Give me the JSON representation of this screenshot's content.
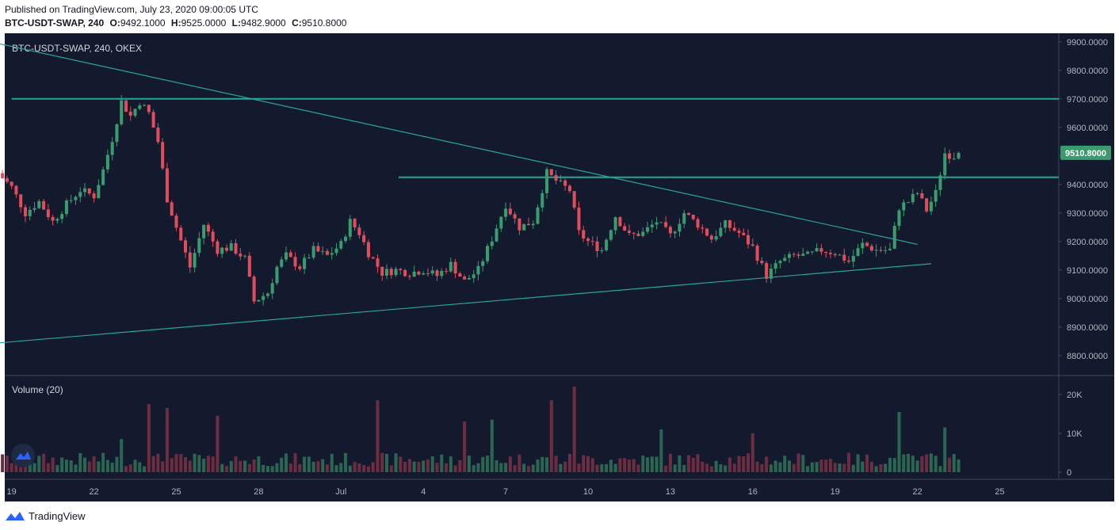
{
  "header": {
    "published": "Published on TradingView.com, July 23, 2020 09:00:05 UTC",
    "symbol_interval": "BTC-USDT-SWAP, 240",
    "open_label": "O:",
    "open": "9492.1000",
    "high_label": "H:",
    "high": "9525.0000",
    "low_label": "L:",
    "low": "9482.9000",
    "close_label": "C:",
    "close": "9510.8000"
  },
  "pane": {
    "symbol_label": "BTC-USDT-SWAP, 240, OKEX",
    "volume_label": "Volume (20)"
  },
  "footer": {
    "brand": "TradingView"
  },
  "colors": {
    "background": "#131a2e",
    "up": "#3a9b6e",
    "down": "#e04d5c",
    "vol_up": "#2b6652",
    "vol_down": "#6d2d41",
    "trendline": "#26a69a",
    "price_badge": "#3a9b6e",
    "axis_text": "#b2b5be"
  },
  "chart_data": {
    "type": "candlestick",
    "price_axis": {
      "ticks": [
        "9900.0000",
        "9800.0000",
        "9700.0000",
        "9600.0000",
        "9500.0000",
        "9400.0000",
        "9300.0000",
        "9200.0000",
        "9100.0000",
        "9000.0000",
        "8900.0000",
        "8800.0000"
      ],
      "range": [
        8730,
        9930
      ],
      "last_price": "9510.8000"
    },
    "volume_axis": {
      "ticks": [
        "20K",
        "10K",
        "0"
      ],
      "range": [
        0,
        22000
      ]
    },
    "time_axis": {
      "labels": [
        "19",
        "22",
        "25",
        "28",
        "Jul",
        "4",
        "7",
        "10",
        "13",
        "16",
        "19",
        "22",
        "25"
      ],
      "label_days": [
        19,
        22,
        25,
        28,
        31,
        34,
        37,
        40,
        43,
        46,
        49,
        52,
        55
      ],
      "range_days": [
        18.75,
        57.15
      ]
    },
    "horizontal_levels": [
      9700,
      9425
    ],
    "trendlines": [
      {
        "from": [
          "Jun 18 00:00",
          9905
        ],
        "to": [
          "Jul 22 00:00",
          9190
        ]
      },
      {
        "from": [
          "Jun 18 00:00",
          8840
        ],
        "to": [
          "Jul 22 12:00",
          9122
        ]
      }
    ],
    "ohlc_anchors": [
      [
        "Jun 18 12:00",
        9440
      ],
      [
        "Jun 19 00:00",
        9390
      ],
      [
        "Jun 19 12:00",
        9300
      ],
      [
        "Jun 20 00:00",
        9340
      ],
      [
        "Jun 20 12:00",
        9270
      ],
      [
        "Jun 21 00:00",
        9330
      ],
      [
        "Jun 21 12:00",
        9380
      ],
      [
        "Jun 22 00:00",
        9360
      ],
      [
        "Jun 22 08:00",
        9450
      ],
      [
        "Jun 22 16:00",
        9560
      ],
      [
        "Jun 23 00:00",
        9690
      ],
      [
        "Jun 23 08:00",
        9640
      ],
      [
        "Jun 23 16:00",
        9690
      ],
      [
        "Jun 24 00:00",
        9650
      ],
      [
        "Jun 24 08:00",
        9550
      ],
      [
        "Jun 24 16:00",
        9350
      ],
      [
        "Jun 25 00:00",
        9250
      ],
      [
        "Jun 25 12:00",
        9110
      ],
      [
        "Jun 26 00:00",
        9260
      ],
      [
        "Jun 26 12:00",
        9170
      ],
      [
        "Jun 27 00:00",
        9180
      ],
      [
        "Jun 27 12:00",
        9140
      ],
      [
        "Jun 27 20:00",
        8990
      ],
      [
        "Jun 28 08:00",
        9020
      ],
      [
        "Jun 28 16:00",
        9110
      ],
      [
        "Jun 29 00:00",
        9150
      ],
      [
        "Jun 29 12:00",
        9110
      ],
      [
        "Jun 30 00:00",
        9170
      ],
      [
        "Jun 30 12:00",
        9150
      ],
      [
        "Jul 1 00:00",
        9190
      ],
      [
        "Jul 1 08:00",
        9270
      ],
      [
        "Jul 1 16:00",
        9230
      ],
      [
        "Jul 2 00:00",
        9160
      ],
      [
        "Jul 2 12:00",
        9090
      ],
      [
        "Jul 3 00:00",
        9100
      ],
      [
        "Jul 3 12:00",
        9090
      ],
      [
        "Jul 4 00:00",
        9100
      ],
      [
        "Jul 4 12:00",
        9080
      ],
      [
        "Jul 5 00:00",
        9120
      ],
      [
        "Jul 5 12:00",
        9060
      ],
      [
        "Jul 6 00:00",
        9100
      ],
      [
        "Jul 6 12:00",
        9210
      ],
      [
        "Jul 7 00:00",
        9330
      ],
      [
        "Jul 7 12:00",
        9250
      ],
      [
        "Jul 8 00:00",
        9270
      ],
      [
        "Jul 8 12:00",
        9440
      ],
      [
        "Jul 9 00:00",
        9400
      ],
      [
        "Jul 9 08:00",
        9380
      ],
      [
        "Jul 9 16:00",
        9230
      ],
      [
        "Jul 10 00:00",
        9200
      ],
      [
        "Jul 10 12:00",
        9170
      ],
      [
        "Jul 11 00:00",
        9290
      ],
      [
        "Jul 11 12:00",
        9220
      ],
      [
        "Jul 12 00:00",
        9230
      ],
      [
        "Jul 12 12:00",
        9270
      ],
      [
        "Jul 13 00:00",
        9220
      ],
      [
        "Jul 13 12:00",
        9300
      ],
      [
        "Jul 14 00:00",
        9260
      ],
      [
        "Jul 14 12:00",
        9210
      ],
      [
        "Jul 15 00:00",
        9260
      ],
      [
        "Jul 15 12:00",
        9230
      ],
      [
        "Jul 16 00:00",
        9180
      ],
      [
        "Jul 16 12:00",
        9080
      ],
      [
        "Jul 17 00:00",
        9130
      ],
      [
        "Jul 17 12:00",
        9150
      ],
      [
        "Jul 18 00:00",
        9150
      ],
      [
        "Jul 18 12:00",
        9170
      ],
      [
        "Jul 19 00:00",
        9160
      ],
      [
        "Jul 19 12:00",
        9130
      ],
      [
        "Jul 20 00:00",
        9190
      ],
      [
        "Jul 20 12:00",
        9170
      ],
      [
        "Jul 21 00:00",
        9170
      ],
      [
        "Jul 21 08:00",
        9320
      ],
      [
        "Jul 21 16:00",
        9340
      ],
      [
        "Jul 22 00:00",
        9370
      ],
      [
        "Jul 22 08:00",
        9310
      ],
      [
        "Jul 22 16:00",
        9370
      ],
      [
        "Jul 23 00:00",
        9510
      ],
      [
        "Jul 23 08:00",
        9500
      ],
      [
        "Jul 23 12:00",
        9510.8
      ]
    ],
    "volume_spikes": [
      [
        "Jun 23 00:00",
        8500
      ],
      [
        "Jun 24 00:00",
        17500
      ],
      [
        "Jun 24 16:00",
        16500
      ],
      [
        "Jun 26 12:00",
        14500
      ],
      [
        "Jul 2 08:00",
        18500
      ],
      [
        "Jul 5 12:00",
        13000
      ],
      [
        "Jul 6 12:00",
        13500
      ],
      [
        "Jul 8 16:00",
        18500
      ],
      [
        "Jul 9 12:00",
        22000
      ],
      [
        "Jul 12 16:00",
        11000
      ],
      [
        "Jul 16 00:00",
        10000
      ],
      [
        "Jul 21 08:00",
        15500
      ],
      [
        "Jul 23 00:00",
        11500
      ]
    ]
  }
}
